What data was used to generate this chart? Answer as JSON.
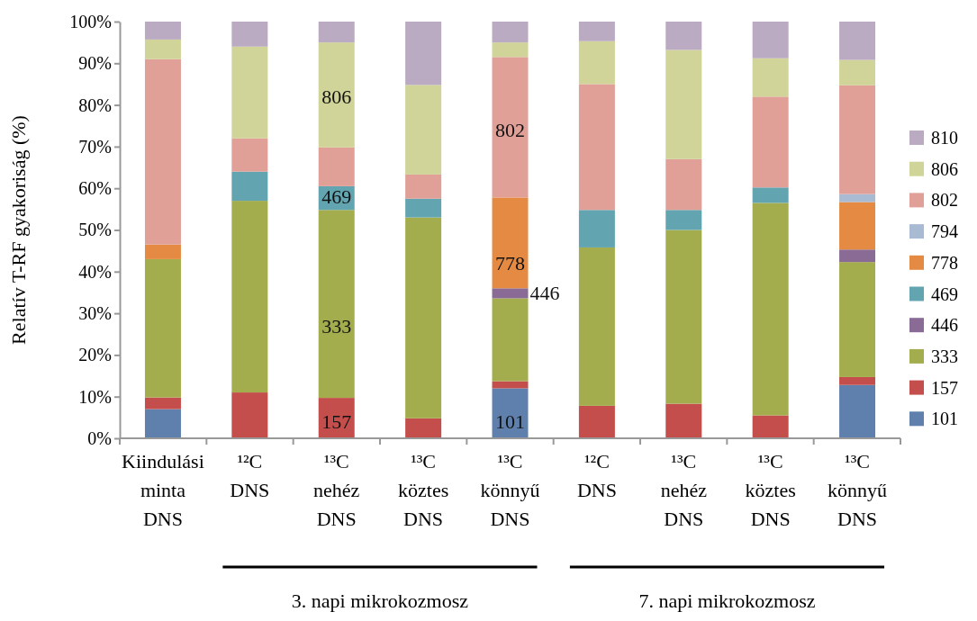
{
  "chart_data": {
    "type": "bar",
    "stacked": true,
    "ylabel": "Relatív T-RF gyakoriság (%)",
    "categories": [
      "Kiindulási minta DNS",
      "¹²C DNS",
      "¹³C nehéz DNS",
      "¹³C köztes DNS",
      "¹³C könnyű DNS",
      "¹²C DNS",
      "¹³C nehéz DNS",
      "¹³C köztes DNS",
      "¹³C könnyű DNS"
    ],
    "series": [
      {
        "name": "101",
        "color": "#5f80ad",
        "values": [
          7,
          0,
          0,
          0,
          12,
          0,
          0,
          0,
          12.8
        ]
      },
      {
        "name": "157",
        "color": "#c44e4b",
        "values": [
          2.8,
          11,
          9.7,
          4.8,
          1.7,
          7.8,
          8.3,
          5.5,
          1.9
        ]
      },
      {
        "name": "333",
        "color": "#a4ad4d",
        "values": [
          33.2,
          46,
          45.1,
          48.2,
          19.9,
          38,
          41.7,
          51,
          27.6
        ]
      },
      {
        "name": "446",
        "color": "#8a6b96",
        "values": [
          0,
          0,
          0,
          0,
          2.4,
          0,
          0,
          0,
          3
        ]
      },
      {
        "name": "469",
        "color": "#62a5b1",
        "values": [
          0,
          7,
          5.7,
          4.5,
          0,
          9,
          4.8,
          3.7,
          0
        ]
      },
      {
        "name": "778",
        "color": "#e58a43",
        "values": [
          3.5,
          0,
          0,
          0,
          21.8,
          0,
          0,
          0,
          11.4
        ]
      },
      {
        "name": "794",
        "color": "#a9bbd3",
        "values": [
          0,
          0,
          0,
          0,
          0,
          0,
          0,
          0,
          1.9
        ]
      },
      {
        "name": "802",
        "color": "#e0a098",
        "values": [
          44.5,
          8,
          9.3,
          5.8,
          33.7,
          30.2,
          12.2,
          21.8,
          26.1
        ]
      },
      {
        "name": "806",
        "color": "#d0d498",
        "values": [
          4.7,
          22,
          25.2,
          21.5,
          3.5,
          10.3,
          26.2,
          9.2,
          6.1
        ]
      },
      {
        "name": "810",
        "color": "#bbabc2",
        "values": [
          4.3,
          6,
          5,
          15.2,
          5,
          4.7,
          6.8,
          8.8,
          9.2
        ]
      }
    ],
    "ylim": [
      0,
      100
    ],
    "yticks": [
      {
        "value": 0,
        "label": "0%"
      },
      {
        "value": 10,
        "label": "10%"
      },
      {
        "value": 20,
        "label": "20%"
      },
      {
        "value": 30,
        "label": "30%"
      },
      {
        "value": 40,
        "label": "40%"
      },
      {
        "value": 50,
        "label": "50%"
      },
      {
        "value": 60,
        "label": "60%"
      },
      {
        "value": 70,
        "label": "70%"
      },
      {
        "value": 80,
        "label": "80%"
      },
      {
        "value": 90,
        "label": "90%"
      },
      {
        "value": 100,
        "label": "100%"
      }
    ],
    "legend": "right",
    "annotations": [
      "806",
      "469",
      "333",
      "157",
      "802",
      "778",
      "446",
      "101",
      "3. napi mikrokozmosz",
      "7. napi mikrokozmosz"
    ]
  }
}
